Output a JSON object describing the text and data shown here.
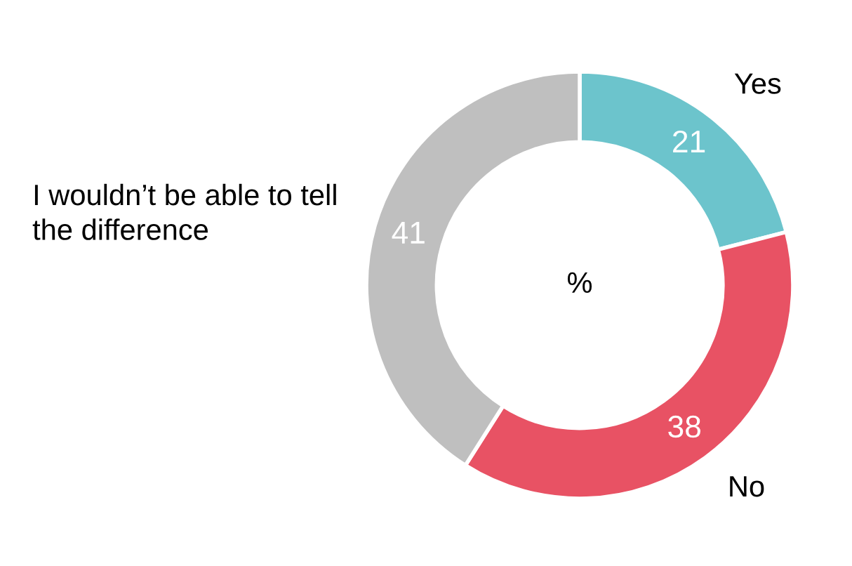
{
  "chart_data": {
    "type": "donut",
    "categories": [
      "Yes",
      "No",
      "I wouldn’t be able to tell the difference"
    ],
    "values": [
      21,
      38,
      41
    ],
    "colors": [
      "#6cc4cc",
      "#e85264",
      "#bfbfbf"
    ],
    "data_labels": true,
    "annotations": [
      "%"
    ],
    "legend": false
  }
}
